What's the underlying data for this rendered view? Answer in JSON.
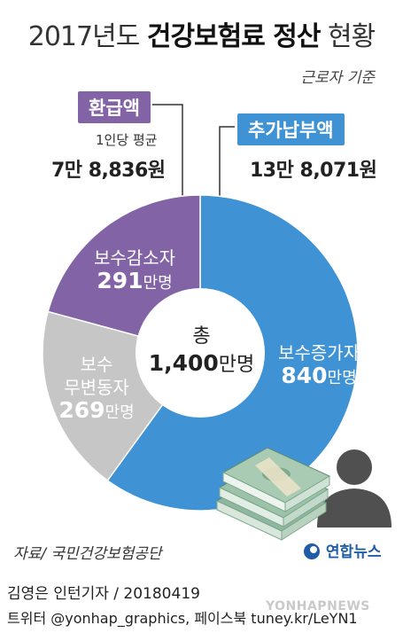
{
  "header": {
    "title_light_1": "2017년도 ",
    "title_bold": "건강보험료 정산",
    "title_light_2": " 현황",
    "subtitle": "근로자 기준"
  },
  "refund": {
    "badge": "환급액",
    "avg_label": "1인당 평균",
    "avg_value": "7만 8,836원"
  },
  "additional": {
    "badge": "추가납부액",
    "avg_value": "13만 8,071원"
  },
  "chart_data": {
    "type": "pie",
    "title": "2017년도 건강보험료 정산 현황",
    "subtitle": "근로자 기준",
    "unit": "만명",
    "total": {
      "label": "총",
      "value": 1400,
      "display": "1,400"
    },
    "slices": [
      {
        "label": "보수증가자",
        "value": 840,
        "display": "840",
        "color": "#3f92d4"
      },
      {
        "label": "보수 무변동자",
        "value": 269,
        "display": "269",
        "color": "#c6c6c6"
      },
      {
        "label": "보수감소자",
        "value": 291,
        "display": "291",
        "color": "#8264a6"
      }
    ]
  },
  "labels": {
    "increase_name": "보수증가자",
    "increase_value": "840",
    "nochange_line1": "보수",
    "nochange_line2": "무변동자",
    "nochange_value": "269",
    "decrease_name": "보수감소자",
    "decrease_value": "291",
    "unit": "만명",
    "center_label": "총",
    "center_value": "1,400"
  },
  "footer": {
    "source": "자료/ 국민건강보험공단",
    "logo": "연합뉴스",
    "byline": "김영은 인턴기자 / 20180419",
    "twitter": "트위터 @yonhap_graphics, 페이스북 tuney.kr/LeYN1",
    "watermark": "YONHAPNEWS"
  },
  "icons": [
    "money-stack-icon",
    "person-silhouette-icon",
    "yonhap-logo-icon"
  ]
}
